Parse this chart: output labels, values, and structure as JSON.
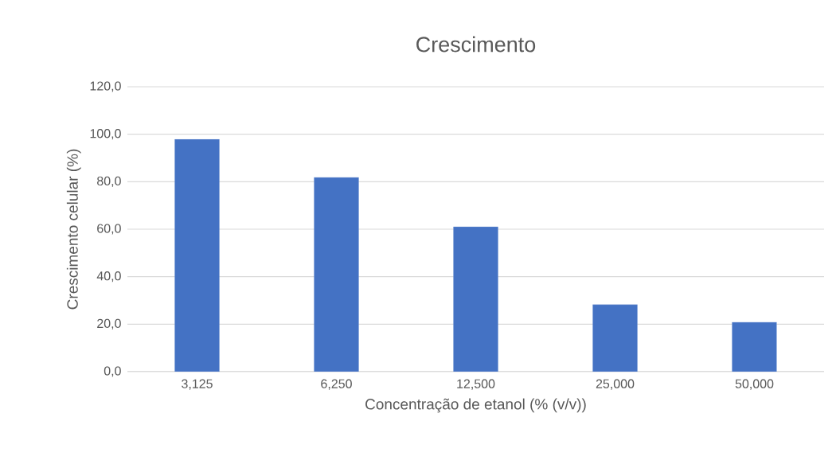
{
  "chart_data": {
    "type": "bar",
    "title": "Crescimento",
    "xlabel": "Concentração de etanol (% (v/v))",
    "ylabel": "Crescimento celular (%)",
    "categories": [
      "3,125",
      "6,250",
      "12,500",
      "25,000",
      "50,000"
    ],
    "values": [
      97.9,
      81.8,
      61.0,
      28.2,
      20.8
    ],
    "color": "#4472c4",
    "ylim": [
      0,
      120
    ],
    "yticks": [
      {
        "value": 0,
        "label": "0,0"
      },
      {
        "value": 20,
        "label": "20,0"
      },
      {
        "value": 40,
        "label": "40,0"
      },
      {
        "value": 60,
        "label": "60,0"
      },
      {
        "value": 80,
        "label": "80,0"
      },
      {
        "value": 100,
        "label": "100,0"
      },
      {
        "value": 120,
        "label": "120,0"
      }
    ],
    "grid": "y"
  }
}
